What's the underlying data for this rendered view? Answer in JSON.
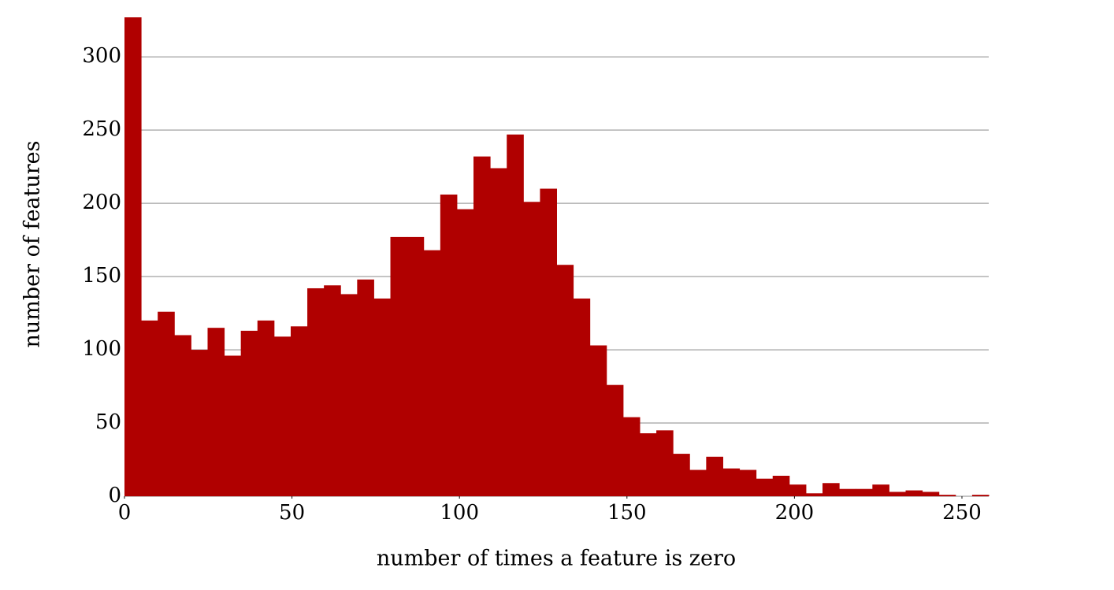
{
  "chart_data": {
    "type": "histogram",
    "x_label": "number of times a feature is zero",
    "y_label": "number of features",
    "color": "#b00000",
    "bins": [
      0,
      4.96,
      9.92,
      14.88,
      19.85,
      24.81,
      29.77,
      34.73,
      39.69,
      44.65,
      49.62,
      54.58,
      59.54,
      64.5,
      69.46,
      74.42,
      79.38,
      84.35,
      89.31,
      94.27,
      99.23,
      104.19,
      109.15,
      114.12,
      119.08,
      124.04,
      129,
      133.96,
      138.92,
      143.88,
      148.85,
      153.81,
      158.77,
      163.73,
      168.69,
      173.65,
      178.62,
      183.58,
      188.54,
      193.5,
      198.46,
      203.42,
      208.38,
      213.35,
      218.31,
      223.27,
      228.23,
      233.19,
      238.15,
      243.12,
      248.08,
      253.04,
      258
    ],
    "values": [
      327,
      120,
      126,
      110,
      100,
      115,
      96,
      113,
      120,
      109,
      116,
      142,
      144,
      138,
      148,
      135,
      177,
      177,
      168,
      206,
      196,
      232,
      224,
      247,
      201,
      210,
      158,
      135,
      103,
      76,
      54,
      43,
      45,
      29,
      18,
      27,
      19,
      18,
      12,
      14,
      8,
      2,
      9,
      5,
      5,
      8,
      3,
      4,
      3,
      1,
      0,
      1
    ],
    "xlim": [
      0,
      258
    ],
    "xticks": [
      0,
      50,
      100,
      150,
      200,
      250
    ],
    "ylim": [
      0,
      327
    ],
    "yticks": [
      0,
      50,
      100,
      150,
      200,
      250,
      300
    ],
    "grid": true
  }
}
